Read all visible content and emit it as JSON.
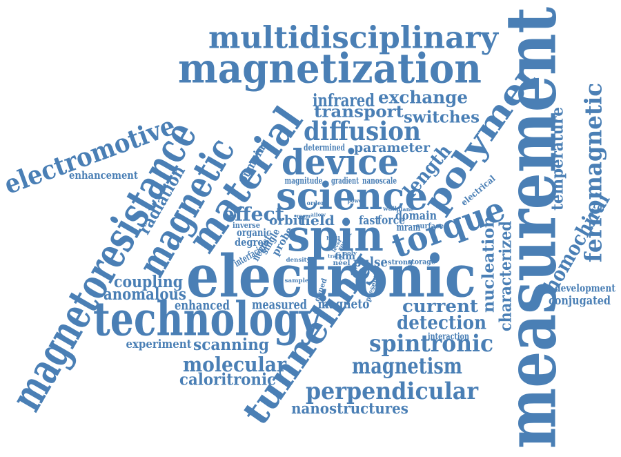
{
  "colors": {
    "word": "#4a7fb5",
    "background": "#ffffff"
  },
  "words": [
    {
      "text": "measurement",
      "weight": 10
    },
    {
      "text": "electronic",
      "weight": 9
    },
    {
      "text": "spin",
      "weight": 8
    },
    {
      "text": "science",
      "weight": 7
    },
    {
      "text": "technology",
      "weight": 7
    },
    {
      "text": "magnetization",
      "weight": 7
    },
    {
      "text": "magnetoresistance",
      "weight": 7
    },
    {
      "text": "material",
      "weight": 7
    },
    {
      "text": "magnetic",
      "weight": 7
    },
    {
      "text": "tunneling",
      "weight": 7
    },
    {
      "text": "polymer",
      "weight": 6
    },
    {
      "text": "torque",
      "weight": 6
    },
    {
      "text": "device",
      "weight": 6
    },
    {
      "text": "multidisciplinary",
      "weight": 6
    },
    {
      "text": "electromotive",
      "weight": 5
    },
    {
      "text": "diffusion",
      "weight": 5
    },
    {
      "text": "perpendicular",
      "weight": 5
    },
    {
      "text": "spintronic",
      "weight": 5
    },
    {
      "text": "magnetism",
      "weight": 5
    },
    {
      "text": "ferromagnetic",
      "weight": 5
    },
    {
      "text": "homochiral",
      "weight": 4
    },
    {
      "text": "molecular",
      "weight": 4
    },
    {
      "text": "detection",
      "weight": 4
    },
    {
      "text": "current",
      "weight": 4
    },
    {
      "text": "effect",
      "weight": 4
    },
    {
      "text": "length",
      "weight": 4
    },
    {
      "text": "exchange",
      "weight": 4
    },
    {
      "text": "infrared",
      "weight": 4
    },
    {
      "text": "transport",
      "weight": 4
    },
    {
      "text": "switches",
      "weight": 4
    },
    {
      "text": "parameter",
      "weight": 3
    },
    {
      "text": "radiation",
      "weight": 3
    },
    {
      "text": "temperature",
      "weight": 3
    },
    {
      "text": "nucleation",
      "weight": 3
    },
    {
      "text": "characterized",
      "weight": 3
    },
    {
      "text": "coupling",
      "weight": 3
    },
    {
      "text": "anomalous",
      "weight": 3
    },
    {
      "text": "scanning",
      "weight": 3
    },
    {
      "text": "caloritronic",
      "weight": 3
    },
    {
      "text": "nanostructures",
      "weight": 3
    },
    {
      "text": "conjugated",
      "weight": 3
    },
    {
      "text": "development",
      "weight": 2
    },
    {
      "text": "field",
      "weight": 3
    },
    {
      "text": "orbit",
      "weight": 3
    },
    {
      "text": "force",
      "weight": 3
    },
    {
      "text": "fast",
      "weight": 2
    },
    {
      "text": "domain",
      "weight": 3
    },
    {
      "text": "pulse",
      "weight": 3
    },
    {
      "text": "enhanced",
      "weight": 3
    },
    {
      "text": "measured",
      "weight": 3
    },
    {
      "text": "magneto",
      "weight": 3
    },
    {
      "text": "experiment",
      "weight": 2
    },
    {
      "text": "enhancement",
      "weight": 2
    },
    {
      "text": "interaction",
      "weight": 2
    },
    {
      "text": "determined",
      "weight": 1
    },
    {
      "text": "magnitude",
      "weight": 1
    },
    {
      "text": "gradient",
      "weight": 1
    },
    {
      "text": "nanoscale",
      "weight": 1
    },
    {
      "text": "pumping",
      "weight": 2
    },
    {
      "text": "electrical",
      "weight": 1
    },
    {
      "text": "organic",
      "weight": 2
    },
    {
      "text": "degree",
      "weight": 2
    },
    {
      "text": "inverse",
      "weight": 1
    },
    {
      "text": "interfacial",
      "weight": 2
    },
    {
      "text": "nernst",
      "weight": 2
    },
    {
      "text": "single",
      "weight": 2
    },
    {
      "text": "probe",
      "weight": 2
    },
    {
      "text": "mram",
      "weight": 2
    },
    {
      "text": "surface",
      "weight": 1
    },
    {
      "text": "wall",
      "weight": 1
    },
    {
      "text": "plane",
      "weight": 1
    },
    {
      "text": "power",
      "weight": 1
    },
    {
      "text": "order",
      "weight": 1
    },
    {
      "text": "allow",
      "weight": 1
    },
    {
      "text": "room",
      "weight": 1
    },
    {
      "text": "result",
      "weight": 1
    },
    {
      "text": "film",
      "weight": 1
    },
    {
      "text": "track",
      "weight": 1
    },
    {
      "text": "néel",
      "weight": 1
    },
    {
      "text": "strong",
      "weight": 1
    },
    {
      "text": "storage",
      "weight": 1
    },
    {
      "text": "present",
      "weight": 1
    },
    {
      "text": "doped",
      "weight": 1
    },
    {
      "text": "density",
      "weight": 1
    },
    {
      "text": "sample",
      "weight": 1
    },
    {
      "text": "bull",
      "weight": 1
    },
    {
      "text": "level",
      "weight": 1
    },
    {
      "text": "poly",
      "weight": 1
    }
  ]
}
